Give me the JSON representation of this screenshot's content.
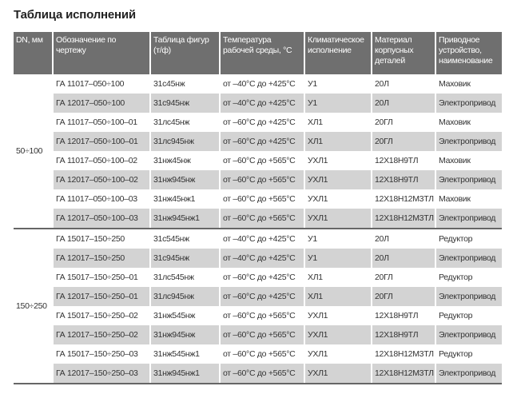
{
  "title": "Таблица исполнений",
  "headers": [
    "DN, мм",
    "Обозначение по чертежу",
    "Таблица фигур (т/ф)",
    "Температура рабочей среды, °С",
    "Климатическое исполнение",
    "Материал корпусных деталей",
    "Приводное устройство, наименование"
  ],
  "groups": [
    {
      "dn": "50÷100",
      "rows": [
        [
          "ГА 11017–050÷100",
          "31с45нж",
          "от –40°С до +425°С",
          "У1",
          "20Л",
          "Маховик"
        ],
        [
          "ГА 12017–050÷100",
          "31с945нж",
          "от –40°С до +425°С",
          "У1",
          "20Л",
          "Электропривод"
        ],
        [
          "ГА 11017–050÷100–01",
          "31лс45нж",
          "от –60°С до +425°С",
          "ХЛ1",
          "20ГЛ",
          "Маховик"
        ],
        [
          "ГА 12017–050÷100–01",
          "31лс945нж",
          "от –60°С до +425°С",
          "ХЛ1",
          "20ГЛ",
          "Электропривод"
        ],
        [
          "ГА 11017–050÷100–02",
          "31нж45нж",
          "от –60°С до +565°С",
          "УХЛ1",
          "12Х18Н9ТЛ",
          "Маховик"
        ],
        [
          "ГА 12017–050÷100–02",
          "31нж945нж",
          "от –60°С до +565°С",
          "УХЛ1",
          "12Х18Н9ТЛ",
          "Электропривод"
        ],
        [
          "ГА 11017–050÷100–03",
          "31нж45нж1",
          "от –60°С до +565°С",
          "УХЛ1",
          "12Х18Н12М3ТЛ",
          "Маховик"
        ],
        [
          "ГА 12017–050÷100–03",
          "31нж945нж1",
          "от –60°С до +565°С",
          "УХЛ1",
          "12Х18Н12М3ТЛ",
          "Электропривод"
        ]
      ]
    },
    {
      "dn": "150÷250",
      "rows": [
        [
          "ГА 15017–150÷250",
          "31с545нж",
          "от –40°С до +425°С",
          "У1",
          "20Л",
          "Редуктор"
        ],
        [
          "ГА 12017–150÷250",
          "31с945нж",
          "от –40°С до +425°С",
          "У1",
          "20Л",
          "Электропривод"
        ],
        [
          "ГА 15017–150÷250–01",
          "31лс545нж",
          "от –60°С до +425°С",
          "ХЛ1",
          "20ГЛ",
          "Редуктор"
        ],
        [
          "ГА 12017–150÷250–01",
          "31лс945нж",
          "от –60°С до +425°С",
          "ХЛ1",
          "20ГЛ",
          "Электропривод"
        ],
        [
          "ГА 15017–150÷250–02",
          "31нж545нж",
          "от –60°С до +565°С",
          "УХЛ1",
          "12Х18Н9ТЛ",
          "Редуктор"
        ],
        [
          "ГА 12017–150÷250–02",
          "31нж945нж",
          "от –60°С до +565°С",
          "УХЛ1",
          "12Х18Н9ТЛ",
          "Электропривод"
        ],
        [
          "ГА 15017–150÷250–03",
          "31нж545нж1",
          "от –60°С до +565°С",
          "УХЛ1",
          "12Х18Н12М3ТЛ",
          "Редуктор"
        ],
        [
          "ГА 12017–150÷250–03",
          "31нж945нж1",
          "от –60°С до +565°С",
          "УХЛ1",
          "12Х18Н12М3ТЛ",
          "Электропривод"
        ]
      ]
    }
  ]
}
